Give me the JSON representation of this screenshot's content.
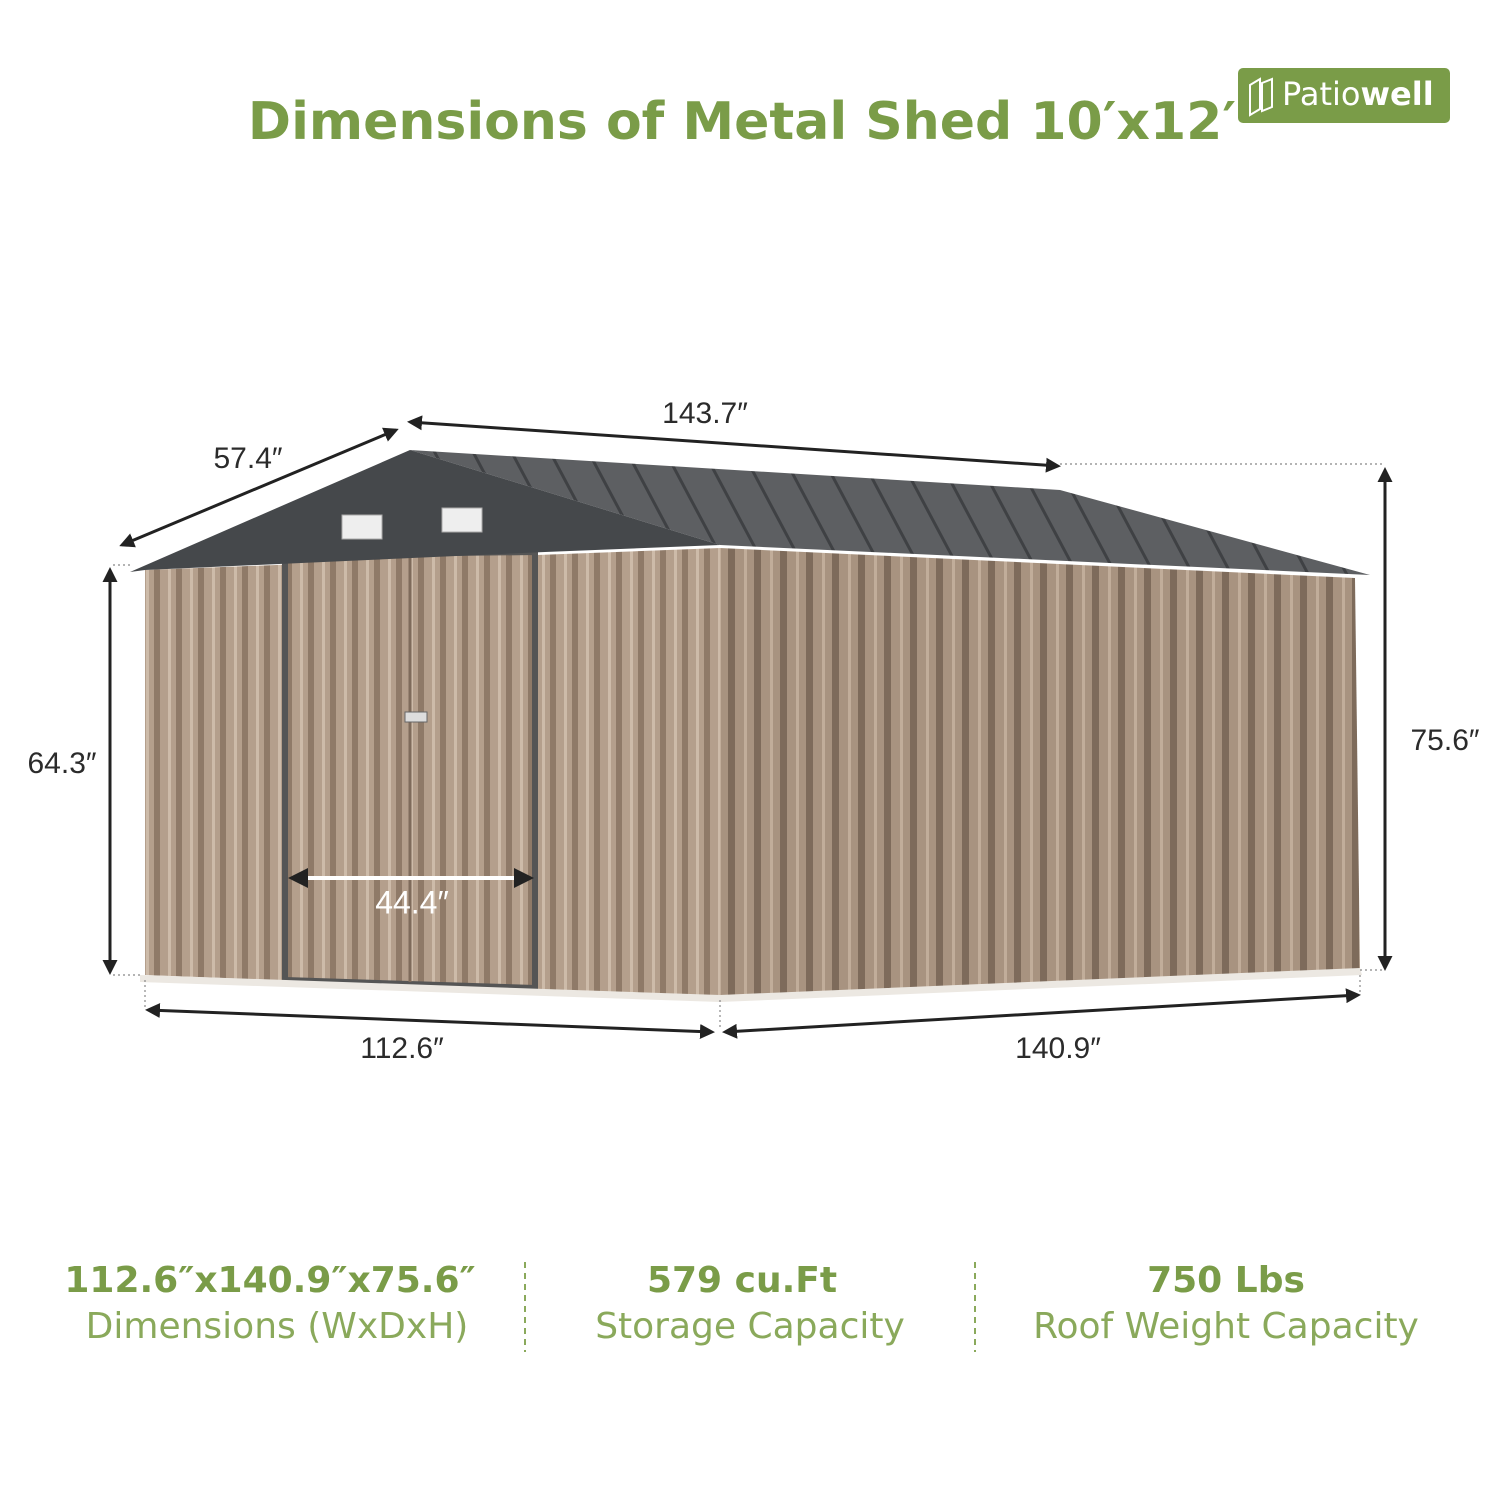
{
  "title": "Dimensions of Metal Shed 10′x12′",
  "logo": {
    "light": "Patio",
    "bold": "well"
  },
  "dimensions": {
    "roof_side": "57.4″",
    "roof_length": "143.7″",
    "wall_height": "64.3″",
    "peak_height": "75.6″",
    "door_width": "44.4″",
    "front_width": "112.6″",
    "side_depth": "140.9″"
  },
  "specs": [
    {
      "value": "112.6″x140.9″x75.6″",
      "label": "Dimensions (WxDxH)"
    },
    {
      "value": "579 cu.Ft",
      "label": "Storage Capacity"
    },
    {
      "value": "750 Lbs",
      "label": "Roof Weight Capacity"
    }
  ]
}
